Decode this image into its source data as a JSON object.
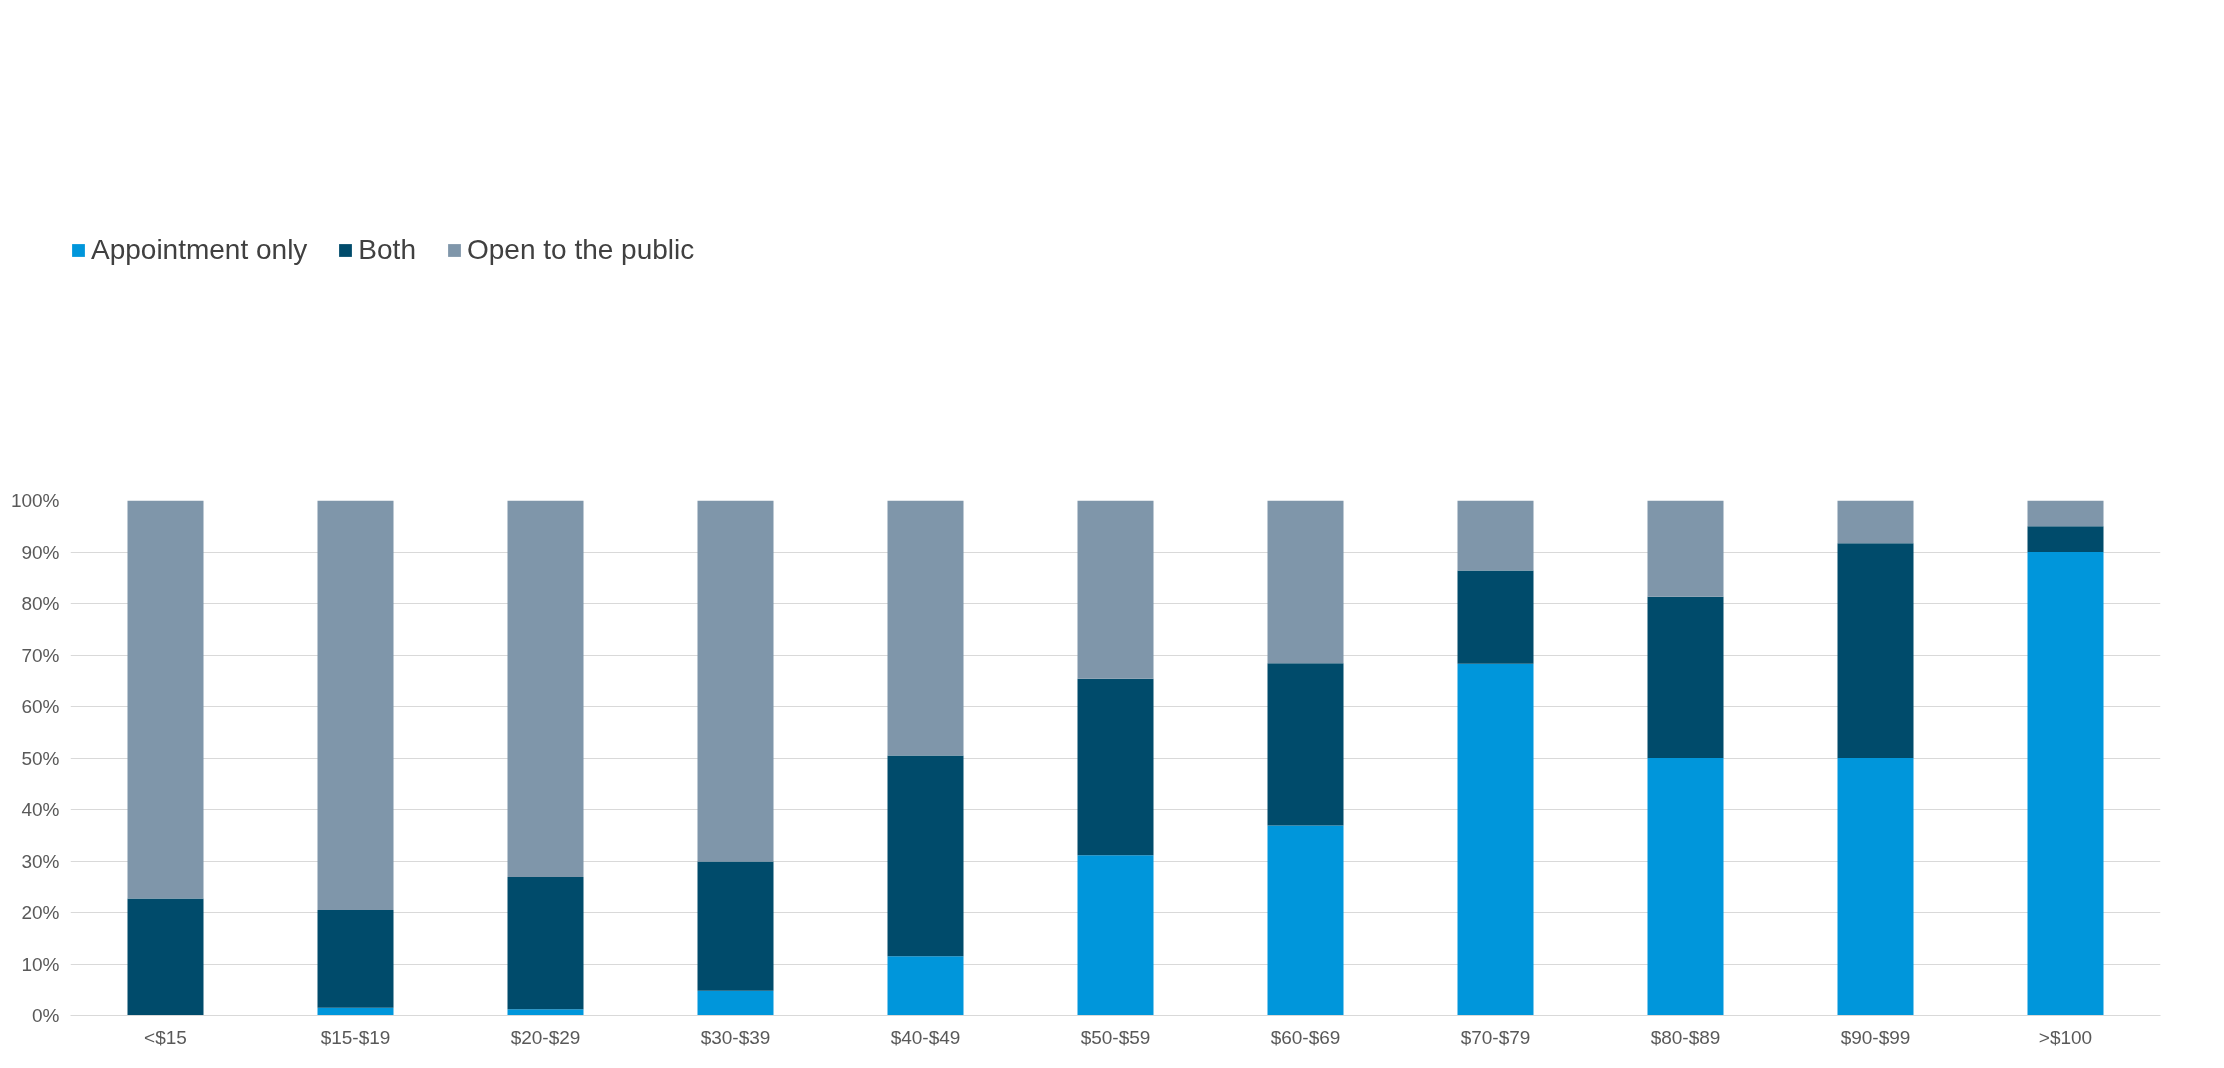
{
  "chart_data": {
    "type": "bar",
    "stacked": true,
    "categories": [
      "<$15",
      "$15-$19",
      "$20-$29",
      "$30-$39",
      "$40-$49",
      "$50-$59",
      "$60-$69",
      "$70-$79",
      "$80-$89",
      "$90-$99",
      ">$100"
    ],
    "series": [
      {
        "name": "Appointment only",
        "color": "#0096db",
        "values": [
          0,
          1.5,
          1.2,
          4.8,
          11.5,
          31.1,
          36.9,
          68.3,
          50.0,
          50.0,
          90.0
        ]
      },
      {
        "name": "Both",
        "color": "#004b6b",
        "values": [
          22.7,
          19.0,
          25.7,
          25.1,
          39.0,
          34.3,
          31.5,
          18.1,
          31.3,
          41.7,
          5.0
        ]
      },
      {
        "name": "Open to the public",
        "color": "#7f96aa",
        "values": [
          77.3,
          79.5,
          73.1,
          70.1,
          49.5,
          34.6,
          31.6,
          13.6,
          18.7,
          8.3,
          5.0
        ]
      }
    ],
    "ylim": [
      0,
      100
    ],
    "yticks": [
      {
        "value": 0,
        "label": "0%"
      },
      {
        "value": 10,
        "label": "10%"
      },
      {
        "value": 20,
        "label": "20%"
      },
      {
        "value": 30,
        "label": "30%"
      },
      {
        "value": 40,
        "label": "40%"
      },
      {
        "value": 50,
        "label": "50%"
      },
      {
        "value": 60,
        "label": "60%"
      },
      {
        "value": 70,
        "label": "70%"
      },
      {
        "value": 80,
        "label": "80%"
      },
      {
        "value": 90,
        "label": "90%"
      },
      {
        "value": 100,
        "label": "100%"
      }
    ],
    "grid": "y",
    "legend": "top left"
  }
}
